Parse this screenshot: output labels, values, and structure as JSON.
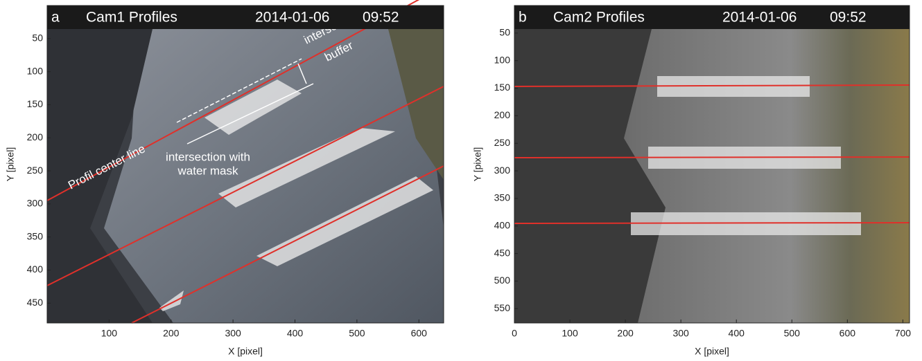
{
  "chart_data": [
    {
      "type": "image",
      "panel": "a",
      "title": "Cam1 Profiles",
      "date": "2014-01-06",
      "time": "09:52",
      "xlabel": "X [pixel]",
      "ylabel": "Y [pixel]",
      "xlim": [
        0,
        640
      ],
      "ylim": [
        480,
        0
      ],
      "xticks": [
        100,
        200,
        300,
        400,
        500,
        600
      ],
      "yticks": [
        50,
        100,
        150,
        200,
        250,
        300,
        350,
        400,
        450
      ],
      "annotations": [
        "intersection",
        "buffer",
        "Profil center line",
        "intersection with",
        "water mask"
      ]
    },
    {
      "type": "image",
      "panel": "b",
      "title": "Cam2 Profiles",
      "date": "2014-01-06",
      "time": "09:52",
      "xlabel": "X [pixel]",
      "ylabel": "Y [pixel]",
      "xlim": [
        0,
        712
      ],
      "ylim": [
        576,
        0
      ],
      "xticks": [
        0,
        100,
        200,
        300,
        400,
        500,
        600,
        700
      ],
      "yticks": [
        50,
        100,
        150,
        200,
        250,
        300,
        350,
        400,
        450,
        500,
        550
      ]
    }
  ]
}
